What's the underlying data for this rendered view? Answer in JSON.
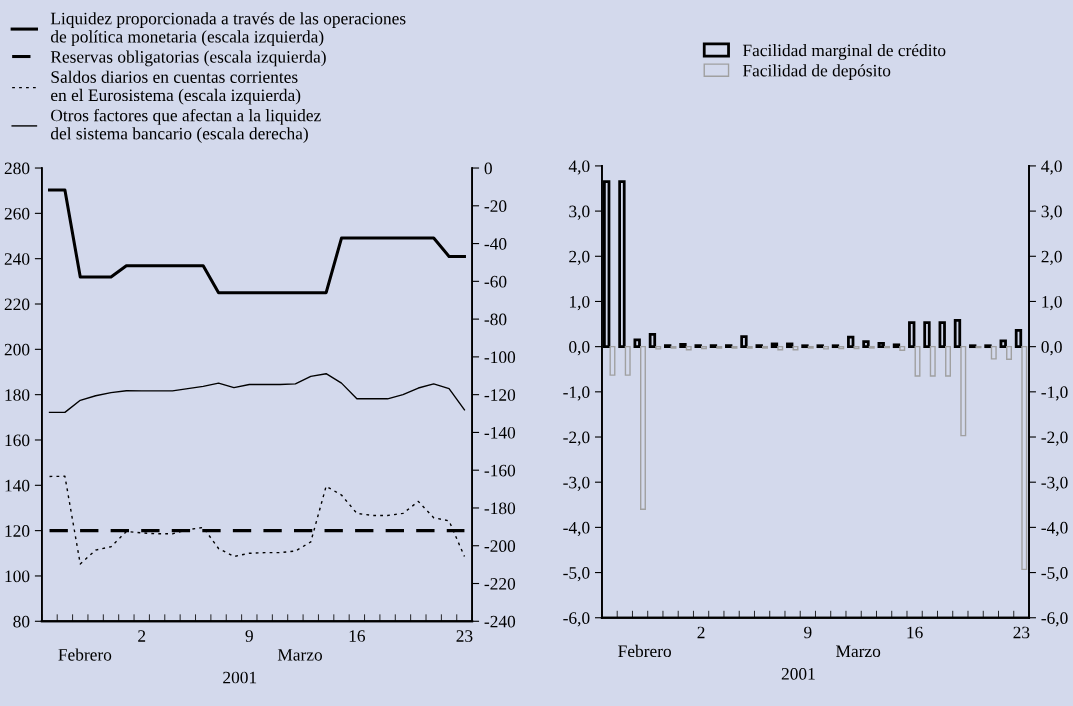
{
  "chart_data": [
    {
      "type": "line",
      "categories": [
        null,
        null,
        null,
        null,
        null,
        null,
        "2",
        null,
        null,
        null,
        null,
        null,
        null,
        "9",
        null,
        null,
        null,
        null,
        null,
        null,
        "16",
        null,
        null,
        null,
        null,
        null,
        null,
        "23"
      ],
      "series": [
        {
          "name": "Liquidez proporcionada a través de las operaciones\nde política monetaria (escala izquierda)",
          "color": "#000000",
          "line_style": "solid",
          "values": [
            270.3,
            270.3,
            231.9,
            231.9,
            231.9,
            236.9,
            236.9,
            236.9,
            236.9,
            236.9,
            236.9,
            225,
            225,
            225,
            225,
            225,
            225,
            225,
            225,
            249.1,
            249.1,
            249.1,
            249.1,
            249.1,
            249.1,
            249.1,
            241,
            241
          ]
        },
        {
          "name": "Reservas obligatorias (escala izquierda)",
          "color": "#000000",
          "line_style": "dashed",
          "values": [
            120,
            120,
            120,
            120,
            120,
            120,
            120,
            120,
            120,
            120,
            120,
            120,
            120,
            120,
            120,
            120,
            120,
            120,
            120,
            120,
            120,
            120,
            120,
            120,
            120,
            120,
            120,
            120
          ]
        },
        {
          "name": "Saldos diarios en cuentas corrientes\nen el Eurosistema (escala izquierda)",
          "color": "#000000",
          "line_style": "dotted",
          "values": [
            143.9,
            144,
            105.3,
            111.4,
            112.9,
            119.6,
            119,
            118.6,
            118.6,
            120.4,
            121.4,
            112.1,
            108.6,
            110,
            110.3,
            110.3,
            111,
            115,
            139.6,
            135.7,
            127.6,
            126.7,
            126.7,
            127.6,
            132.9,
            125.7,
            124.3,
            108.6
          ]
        },
        {
          "name": "Otros factores que afectan a la liquidez\ndel sistema bancario (escala derecha)",
          "color": "#000000",
          "line_style": "solid",
          "axis": "y2",
          "values": [
            -129.4,
            -129.4,
            -123,
            -120.6,
            -118.9,
            -117.9,
            -118,
            -118,
            -118,
            -116.8,
            -115.6,
            -113.9,
            -116.3,
            -114.6,
            -114.6,
            -114.6,
            -114.3,
            -110.3,
            -108.9,
            -113.9,
            -122.2,
            -122.2,
            -122.2,
            -120,
            -116.5,
            -114.3,
            -116.8,
            -128
          ]
        }
      ],
      "ylim": [
        80,
        280
      ],
      "yticks": [
        80,
        100,
        120,
        140,
        160,
        180,
        200,
        220,
        240,
        260,
        280
      ],
      "y2lim": [
        -240,
        0
      ],
      "y2ticks": [
        -240,
        -220,
        -200,
        -180,
        -160,
        -140,
        -120,
        -100,
        -80,
        -60,
        -40,
        -20,
        0
      ],
      "legend": "top left",
      "annotations": [
        "Febrero",
        "Marzo",
        "2001"
      ]
    },
    {
      "type": "bar",
      "categories": [
        null,
        null,
        null,
        null,
        null,
        null,
        "2",
        null,
        null,
        null,
        null,
        null,
        null,
        "9",
        null,
        null,
        null,
        null,
        null,
        null,
        "16",
        null,
        null,
        null,
        null,
        null,
        null,
        "23"
      ],
      "series": [
        {
          "name": "Facilidad marginal de crédito",
          "color": "#000000",
          "values": [
            3.65,
            3.65,
            0.15,
            0.27,
            0.02,
            0.05,
            0.02,
            0.02,
            0.02,
            0.22,
            0.02,
            0.06,
            0.06,
            0.02,
            0.02,
            0.02,
            0.21,
            0.11,
            0.07,
            0.04,
            0.53,
            0.53,
            0.53,
            0.58,
            0.02,
            0.02,
            0.13,
            0.36
          ]
        },
        {
          "name": "Facilidad de depósito",
          "color": "#a0a0a0",
          "values": [
            -0.63,
            -0.63,
            -3.6,
            -0.05,
            -0.03,
            -0.07,
            -0.04,
            -0.03,
            -0.03,
            -0.03,
            -0.03,
            -0.07,
            -0.07,
            -0.03,
            -0.05,
            -0.04,
            -0.04,
            -0.03,
            -0.02,
            -0.08,
            -0.65,
            -0.65,
            -0.65,
            -1.97,
            -0.02,
            -0.27,
            -0.28,
            -4.93
          ]
        }
      ],
      "ylim": [
        -6,
        4
      ],
      "yticks": [
        {
          "value": -6,
          "label": "-6,0"
        },
        {
          "value": -5,
          "label": "-5,0"
        },
        {
          "value": -4,
          "label": "-4,0"
        },
        {
          "value": -3,
          "label": "-3,0"
        },
        {
          "value": -2,
          "label": "-2,0"
        },
        {
          "value": -1,
          "label": "-1,0"
        },
        {
          "value": 0,
          "label": "0,0"
        },
        {
          "value": 1,
          "label": "1,0"
        },
        {
          "value": 2,
          "label": "2,0"
        },
        {
          "value": 3,
          "label": "3,0"
        },
        {
          "value": 4,
          "label": "4,0"
        }
      ],
      "y2lim": [
        -6,
        4
      ],
      "y2ticks": [
        {
          "value": -6,
          "label": "-6,0"
        },
        {
          "value": -5,
          "label": "-5,0"
        },
        {
          "value": -4,
          "label": "-4,0"
        },
        {
          "value": -3,
          "label": "-3,0"
        },
        {
          "value": -2,
          "label": "-2,0"
        },
        {
          "value": -1,
          "label": "-1,0"
        },
        {
          "value": 0,
          "label": "0,0"
        },
        {
          "value": 1,
          "label": "1,0"
        },
        {
          "value": 2,
          "label": "2,0"
        },
        {
          "value": 3,
          "label": "3,0"
        },
        {
          "value": 4,
          "label": "4,0"
        }
      ],
      "legend": "top",
      "annotations": [
        "Febrero",
        "Marzo",
        "2001"
      ]
    }
  ]
}
